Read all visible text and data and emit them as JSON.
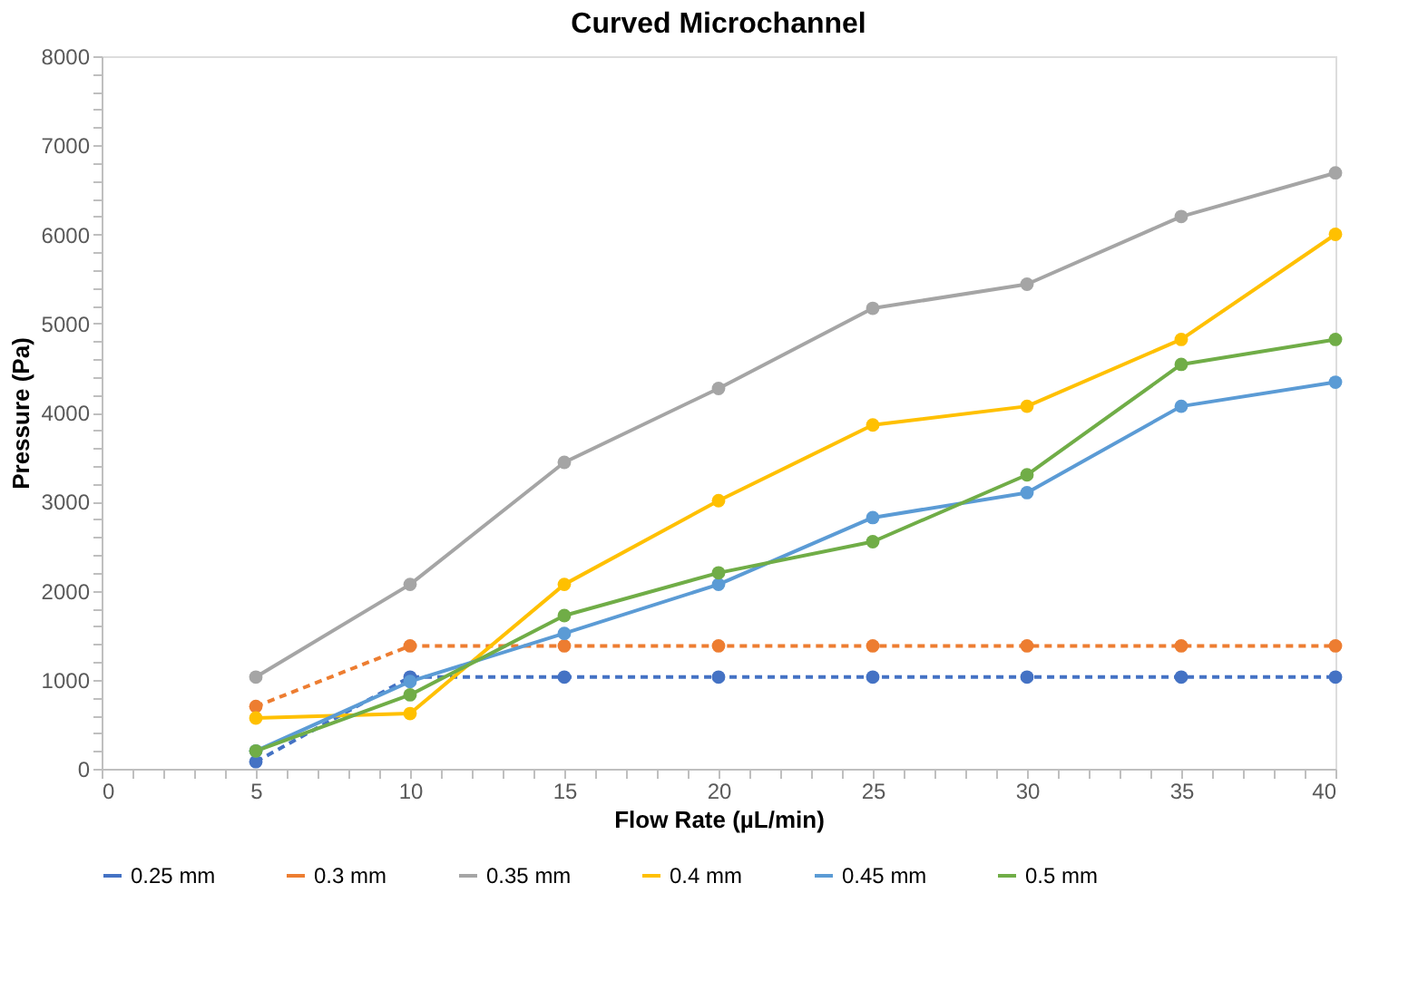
{
  "chart_data": {
    "type": "line",
    "title": "Curved Microchannel",
    "xlabel": "Flow Rate (µL/min)",
    "ylabel": "Pressure (Pa)",
    "x": [
      5,
      10,
      15,
      20,
      25,
      30,
      35,
      40
    ],
    "series": [
      {
        "name": "0.25 mm",
        "color": "#4472c4",
        "line_style": "dashed",
        "values": [
          80,
          1030,
          1030,
          1030,
          1030,
          1030,
          1030,
          1030
        ]
      },
      {
        "name": "0.3 mm",
        "color": "#ed7d31",
        "line_style": "dashed",
        "values": [
          700,
          1380,
          1380,
          1380,
          1380,
          1380,
          1380,
          1380
        ]
      },
      {
        "name": "0.35 mm",
        "color": "#a5a5a5",
        "line_style": "solid",
        "values": [
          1030,
          2070,
          3440,
          4270,
          5170,
          5440,
          6200,
          6690
        ]
      },
      {
        "name": "0.4 mm",
        "color": "#ffc000",
        "line_style": "solid",
        "values": [
          570,
          620,
          2070,
          3010,
          3860,
          4070,
          4820,
          6000
        ]
      },
      {
        "name": "0.45 mm",
        "color": "#5b9bd5",
        "line_style": "solid",
        "values": [
          200,
          980,
          1520,
          2070,
          2820,
          3100,
          4070,
          4340
        ]
      },
      {
        "name": "0.5 mm",
        "color": "#70ad47",
        "line_style": "solid",
        "values": [
          200,
          830,
          1720,
          2200,
          2550,
          3300,
          4540,
          4820
        ]
      }
    ],
    "xlim": [
      0,
      40
    ],
    "xticks": [
      0,
      {
        "value": 1,
        "label": null
      },
      {
        "value": 2,
        "label": null
      },
      {
        "value": 3,
        "label": null
      },
      {
        "value": 4,
        "label": null
      },
      5,
      {
        "value": 6,
        "label": null
      },
      {
        "value": 7,
        "label": null
      },
      {
        "value": 8,
        "label": null
      },
      {
        "value": 9,
        "label": null
      },
      10,
      {
        "value": 11,
        "label": null
      },
      {
        "value": 12,
        "label": null
      },
      {
        "value": 13,
        "label": null
      },
      {
        "value": 14,
        "label": null
      },
      15,
      {
        "value": 16,
        "label": null
      },
      {
        "value": 17,
        "label": null
      },
      {
        "value": 18,
        "label": null
      },
      {
        "value": 19,
        "label": null
      },
      20,
      {
        "value": 21,
        "label": null
      },
      {
        "value": 22,
        "label": null
      },
      {
        "value": 23,
        "label": null
      },
      {
        "value": 24,
        "label": null
      },
      25,
      {
        "value": 26,
        "label": null
      },
      {
        "value": 27,
        "label": null
      },
      {
        "value": 28,
        "label": null
      },
      {
        "value": 29,
        "label": null
      },
      30,
      {
        "value": 31,
        "label": null
      },
      {
        "value": 32,
        "label": null
      },
      {
        "value": 33,
        "label": null
      },
      {
        "value": 34,
        "label": null
      },
      35,
      {
        "value": 36,
        "label": null
      },
      {
        "value": 37,
        "label": null
      },
      {
        "value": 38,
        "label": null
      },
      {
        "value": 39,
        "label": null
      },
      40
    ],
    "ylim": [
      0,
      8000
    ],
    "yticks": [
      0,
      {
        "value": 200,
        "label": null
      },
      {
        "value": 400,
        "label": null
      },
      {
        "value": 600,
        "label": null
      },
      {
        "value": 800,
        "label": null
      },
      1000,
      {
        "value": 1200,
        "label": null
      },
      {
        "value": 1400,
        "label": null
      },
      {
        "value": 1600,
        "label": null
      },
      {
        "value": 1800,
        "label": null
      },
      2000,
      {
        "value": 2200,
        "label": null
      },
      {
        "value": 2400,
        "label": null
      },
      {
        "value": 2600,
        "label": null
      },
      {
        "value": 2800,
        "label": null
      },
      3000,
      {
        "value": 3200,
        "label": null
      },
      {
        "value": 3400,
        "label": null
      },
      {
        "value": 3600,
        "label": null
      },
      {
        "value": 3800,
        "label": null
      },
      4000,
      {
        "value": 4200,
        "label": null
      },
      {
        "value": 4400,
        "label": null
      },
      {
        "value": 4600,
        "label": null
      },
      {
        "value": 4800,
        "label": null
      },
      5000,
      {
        "value": 5200,
        "label": null
      },
      {
        "value": 5400,
        "label": null
      },
      {
        "value": 5600,
        "label": null
      },
      {
        "value": 5800,
        "label": null
      },
      6000,
      {
        "value": 6200,
        "label": null
      },
      {
        "value": 6400,
        "label": null
      },
      {
        "value": 6600,
        "label": null
      },
      {
        "value": 6800,
        "label": null
      },
      7000,
      {
        "value": 7200,
        "label": null
      },
      {
        "value": 7400,
        "label": null
      },
      {
        "value": 7600,
        "label": null
      },
      {
        "value": 7800,
        "label": null
      },
      8000
    ],
    "grid": false,
    "legend": "bottom",
    "marker": "circle"
  }
}
